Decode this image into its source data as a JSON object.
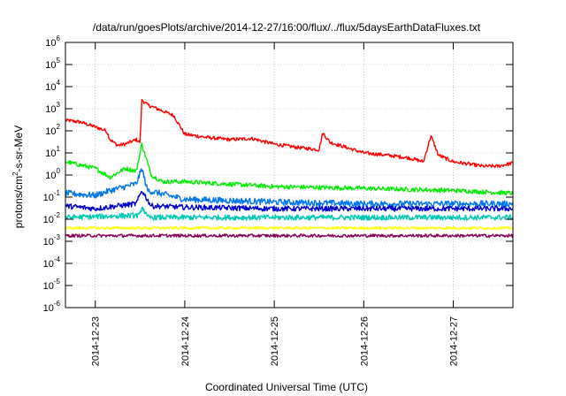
{
  "chart_data": {
    "type": "line",
    "title": "/data/run/goesPlots/archive/2014-12-27/16:00/flux/../flux/5daysEarthDataFluxes.txt",
    "xlabel": "Coordinated Universal Time (UTC)",
    "ylabel": {
      "prefix": "protons/cm",
      "sup": "2",
      "suffix": "-s-sr-MeV"
    },
    "yscale": "log",
    "ylim": [
      1e-06,
      1000000
    ],
    "ytick_exponents": [
      -6,
      -5,
      -4,
      -3,
      -2,
      -1,
      0,
      1,
      2,
      3,
      4,
      5,
      6
    ],
    "ytick_base": "10",
    "xlim": [
      "2014-12-22T16:00",
      "2014-12-27T16:00"
    ],
    "xticks": [
      "2014-12-23",
      "2014-12-24",
      "2014-12-25",
      "2014-12-26",
      "2014-12-27"
    ],
    "grid": true,
    "series": [
      {
        "color": "#ff0000",
        "noise": 0.08,
        "points": [
          [
            "2014-12-22T16:00",
            300
          ],
          [
            "2014-12-22T20:00",
            250
          ],
          [
            "2014-12-23T00:00",
            150
          ],
          [
            "2014-12-23T03:00",
            100
          ],
          [
            "2014-12-23T04:00",
            40
          ],
          [
            "2014-12-23T06:00",
            22
          ],
          [
            "2014-12-23T08:00",
            25
          ],
          [
            "2014-12-23T11:00",
            40
          ],
          [
            "2014-12-23T12:00",
            30
          ],
          [
            "2014-12-23T12:30",
            2500
          ],
          [
            "2014-12-23T14:00",
            1500
          ],
          [
            "2014-12-23T18:00",
            800
          ],
          [
            "2014-12-23T21:00",
            500
          ],
          [
            "2014-12-24T00:00",
            70
          ],
          [
            "2014-12-24T06:00",
            50
          ],
          [
            "2014-12-24T12:00",
            40
          ],
          [
            "2014-12-24T18:00",
            45
          ],
          [
            "2014-12-25T00:00",
            25
          ],
          [
            "2014-12-25T06:00",
            18
          ],
          [
            "2014-12-25T12:00",
            14
          ],
          [
            "2014-12-25T13:00",
            80
          ],
          [
            "2014-12-25T15:00",
            30
          ],
          [
            "2014-12-26T00:00",
            10
          ],
          [
            "2014-12-26T06:00",
            8
          ],
          [
            "2014-12-26T12:00",
            6
          ],
          [
            "2014-12-26T16:00",
            4
          ],
          [
            "2014-12-26T18:00",
            60
          ],
          [
            "2014-12-26T20:00",
            8
          ],
          [
            "2014-12-27T00:00",
            4
          ],
          [
            "2014-12-27T08:00",
            2.5
          ],
          [
            "2014-12-27T12:00",
            2.5
          ],
          [
            "2014-12-27T16:00",
            3.5
          ]
        ]
      },
      {
        "color": "#00ee00",
        "noise": 0.1,
        "points": [
          [
            "2014-12-22T16:00",
            4
          ],
          [
            "2014-12-23T00:00",
            2
          ],
          [
            "2014-12-23T04:00",
            0.8
          ],
          [
            "2014-12-23T08:00",
            2
          ],
          [
            "2014-12-23T11:00",
            1.5
          ],
          [
            "2014-12-23T12:30",
            25
          ],
          [
            "2014-12-23T15:00",
            1
          ],
          [
            "2014-12-23T18:00",
            0.5
          ],
          [
            "2014-12-24T00:00",
            0.5
          ],
          [
            "2014-12-25T00:00",
            0.3
          ],
          [
            "2014-12-26T00:00",
            0.25
          ],
          [
            "2014-12-27T00:00",
            0.2
          ],
          [
            "2014-12-27T16:00",
            0.15
          ]
        ]
      },
      {
        "color": "#0077ee",
        "noise": 0.14,
        "points": [
          [
            "2014-12-22T16:00",
            0.15
          ],
          [
            "2014-12-23T00:00",
            0.12
          ],
          [
            "2014-12-23T04:00",
            0.2
          ],
          [
            "2014-12-23T11:00",
            0.4
          ],
          [
            "2014-12-23T12:30",
            2
          ],
          [
            "2014-12-23T14:00",
            0.2
          ],
          [
            "2014-12-24T00:00",
            0.08
          ],
          [
            "2014-12-25T00:00",
            0.06
          ],
          [
            "2014-12-26T00:00",
            0.05
          ],
          [
            "2014-12-27T16:00",
            0.05
          ]
        ]
      },
      {
        "color": "#0000cc",
        "noise": 0.12,
        "points": [
          [
            "2014-12-22T16:00",
            0.04
          ],
          [
            "2014-12-23T00:00",
            0.03
          ],
          [
            "2014-12-23T06:00",
            0.04
          ],
          [
            "2014-12-23T11:00",
            0.05
          ],
          [
            "2014-12-23T12:30",
            0.2
          ],
          [
            "2014-12-23T15:00",
            0.04
          ],
          [
            "2014-12-24T00:00",
            0.035
          ],
          [
            "2014-12-25T00:00",
            0.03
          ],
          [
            "2014-12-27T16:00",
            0.03
          ]
        ]
      },
      {
        "color": "#00c8b4",
        "noise": 0.12,
        "points": [
          [
            "2014-12-22T16:00",
            0.012
          ],
          [
            "2014-12-23T12:00",
            0.015
          ],
          [
            "2014-12-23T12:30",
            0.04
          ],
          [
            "2014-12-23T14:00",
            0.012
          ],
          [
            "2014-12-27T16:00",
            0.012
          ]
        ]
      },
      {
        "color": "#ffff00",
        "noise": 0.06,
        "points": [
          [
            "2014-12-22T16:00",
            0.004
          ],
          [
            "2014-12-27T16:00",
            0.004
          ]
        ]
      },
      {
        "color": "#880055",
        "noise": 0.07,
        "points": [
          [
            "2014-12-22T16:00",
            0.0018
          ],
          [
            "2014-12-27T16:00",
            0.0018
          ]
        ]
      }
    ]
  }
}
